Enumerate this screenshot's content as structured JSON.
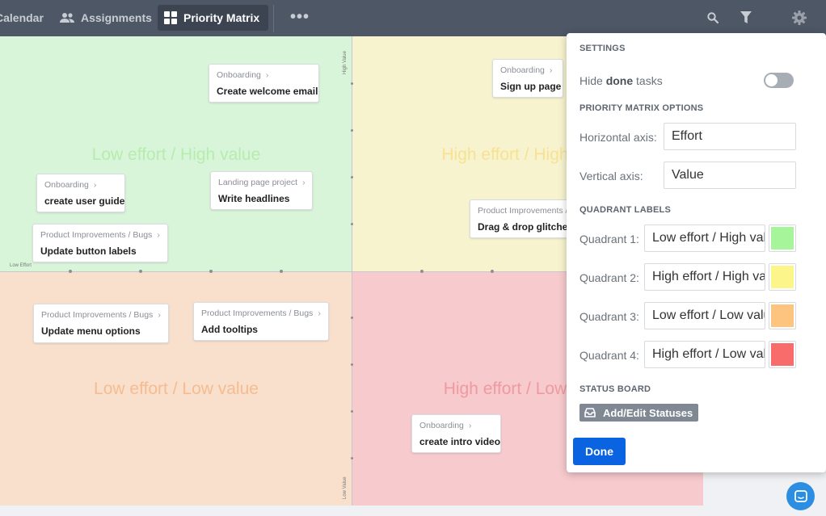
{
  "nav": {
    "calendar": "Calendar",
    "assignments": "Assignments",
    "priority_matrix": "Priority Matrix",
    "more": "•••"
  },
  "top_icons": [
    "search-icon",
    "filter-icon",
    "gear-icon"
  ],
  "matrix": {
    "quadrant_labels": [
      "Low effort / High value",
      "High effort / High value",
      "Low effort / Low value",
      "High effort / Low value"
    ],
    "axis": {
      "high_value": "High Value",
      "low_value": "Low Value",
      "low_effort": "Low Effort"
    },
    "cards": [
      {
        "project": "Onboarding",
        "title": "Create welcome email"
      },
      {
        "project": "Onboarding",
        "title": "Sign up page"
      },
      {
        "project": "Onboarding",
        "title": "create user guide"
      },
      {
        "project": "Landing page project",
        "title": "Write headlines"
      },
      {
        "project": "Product Improvements / Bugs",
        "title": "Update button labels"
      },
      {
        "project": "Product Improvements /",
        "title": "Drag & drop glitches"
      },
      {
        "project": "Product Improvements / Bugs",
        "title": "Update menu options"
      },
      {
        "project": "Product Improvements / Bugs",
        "title": "Add tooltips"
      },
      {
        "project": "Onboarding",
        "title": "create intro video"
      }
    ]
  },
  "settings": {
    "heading": "SETTINGS",
    "hide_done_prefix": "Hide ",
    "hide_done_bold": "done",
    "hide_done_suffix": " tasks",
    "hide_done_on": false,
    "matrix_options_heading": "PRIORITY MATRIX OPTIONS",
    "horizontal_axis_label": "Horizontal axis:",
    "horizontal_axis_value": "Effort",
    "vertical_axis_label": "Vertical axis:",
    "vertical_axis_value": "Value",
    "quadrant_labels_heading": "QUADRANT LABELS",
    "quadrants": [
      {
        "label": "Quadrant 1:",
        "value": "Low effort / High value",
        "color": "#a6f59a"
      },
      {
        "label": "Quadrant 2:",
        "value": "High effort / High value",
        "color": "#fcf58a"
      },
      {
        "label": "Quadrant 3:",
        "value": "Low effort / Low value",
        "color": "#fcc47e"
      },
      {
        "label": "Quadrant 4:",
        "value": "High effort / Low value",
        "color": "#f86c6c"
      }
    ],
    "status_board_heading": "STATUS BOARD",
    "status_button": "Add/Edit Statuses",
    "done_button": "Done"
  }
}
